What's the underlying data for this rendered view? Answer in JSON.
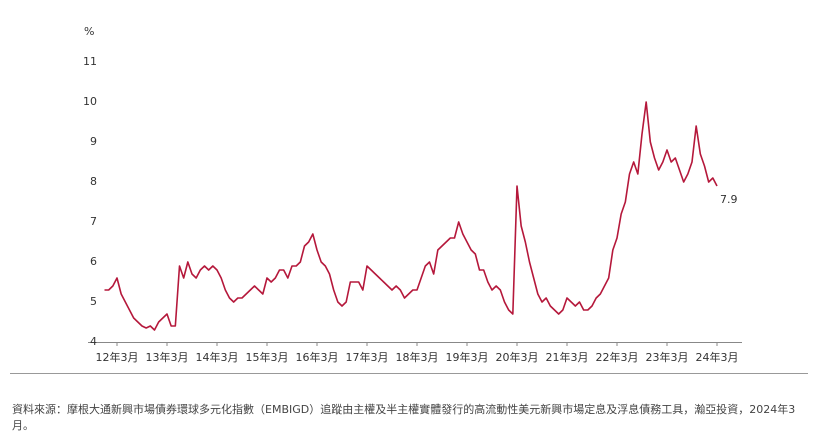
{
  "chart_data": {
    "type": "line",
    "y_unit": "%",
    "categories": [
      null,
      null,
      null,
      "12年3月",
      null,
      null,
      null,
      null,
      null,
      null,
      null,
      null,
      null,
      null,
      null,
      "13年3月",
      null,
      null,
      null,
      null,
      null,
      null,
      null,
      null,
      null,
      null,
      null,
      "14年3月",
      null,
      null,
      null,
      null,
      null,
      null,
      null,
      null,
      null,
      null,
      null,
      "15年3月",
      null,
      null,
      null,
      null,
      null,
      null,
      null,
      null,
      null,
      null,
      null,
      "16年3月",
      null,
      null,
      null,
      null,
      null,
      null,
      null,
      null,
      null,
      null,
      null,
      "17年3月",
      null,
      null,
      null,
      null,
      null,
      null,
      null,
      null,
      null,
      null,
      null,
      "18年3月",
      null,
      null,
      null,
      null,
      null,
      null,
      null,
      null,
      null,
      null,
      null,
      "19年3月",
      null,
      null,
      null,
      null,
      null,
      null,
      null,
      null,
      null,
      null,
      null,
      "20年3月",
      null,
      null,
      null,
      null,
      null,
      null,
      null,
      null,
      null,
      null,
      null,
      "21年3月",
      null,
      null,
      null,
      null,
      null,
      null,
      null,
      null,
      null,
      null,
      null,
      "22年3月",
      null,
      null,
      null,
      null,
      null,
      null,
      null,
      null,
      null,
      null,
      null,
      "23年3月",
      null,
      null,
      null,
      null,
      null,
      null,
      null,
      null,
      null,
      null,
      null,
      "24年3月"
    ],
    "values": [
      5.3,
      5.3,
      5.4,
      5.6,
      5.2,
      5.0,
      4.8,
      4.6,
      4.5,
      4.4,
      4.35,
      4.4,
      4.3,
      4.5,
      4.6,
      4.7,
      4.4,
      4.4,
      5.9,
      5.6,
      6.0,
      5.7,
      5.6,
      5.8,
      5.9,
      5.8,
      5.9,
      5.8,
      5.6,
      5.3,
      5.1,
      5.0,
      5.1,
      5.1,
      5.2,
      5.3,
      5.4,
      5.3,
      5.2,
      5.6,
      5.5,
      5.6,
      5.8,
      5.8,
      5.6,
      5.9,
      5.9,
      6.0,
      6.4,
      6.5,
      6.7,
      6.3,
      6.0,
      5.9,
      5.7,
      5.3,
      5.0,
      4.9,
      5.0,
      5.5,
      5.5,
      5.5,
      5.3,
      5.9,
      5.8,
      5.7,
      5.6,
      5.5,
      5.4,
      5.3,
      5.4,
      5.3,
      5.1,
      5.2,
      5.3,
      5.3,
      5.6,
      5.9,
      6.0,
      5.7,
      6.3,
      6.4,
      6.5,
      6.6,
      6.6,
      7.0,
      6.7,
      6.5,
      6.3,
      6.2,
      5.8,
      5.8,
      5.5,
      5.3,
      5.4,
      5.3,
      5.0,
      4.8,
      4.7,
      7.9,
      6.9,
      6.5,
      6.0,
      5.6,
      5.2,
      5.0,
      5.1,
      4.9,
      4.8,
      4.7,
      4.8,
      5.1,
      5.0,
      4.9,
      5.0,
      4.8,
      4.8,
      4.9,
      5.1,
      5.2,
      5.4,
      5.6,
      6.3,
      6.6,
      7.2,
      7.5,
      8.2,
      8.5,
      8.2,
      9.2,
      10.0,
      9.0,
      8.6,
      8.3,
      8.5,
      8.8,
      8.5,
      8.6,
      8.3,
      8.0,
      8.2,
      8.5,
      9.4,
      8.7,
      8.4,
      8.0,
      8.1,
      7.9
    ],
    "color": "#b5183b",
    "ylim": [
      4,
      11
    ],
    "yticks": [
      4,
      5,
      6,
      7,
      8,
      9,
      10,
      11
    ],
    "grid": false,
    "source": "資料來源：摩根大通新興市場債券環球多元化指數（EMBIGD）追蹤由主權及半主權實體發行的高流動性美元新興市場定息及浮息債務工具，瀚亞投資，2024年3月。"
  }
}
